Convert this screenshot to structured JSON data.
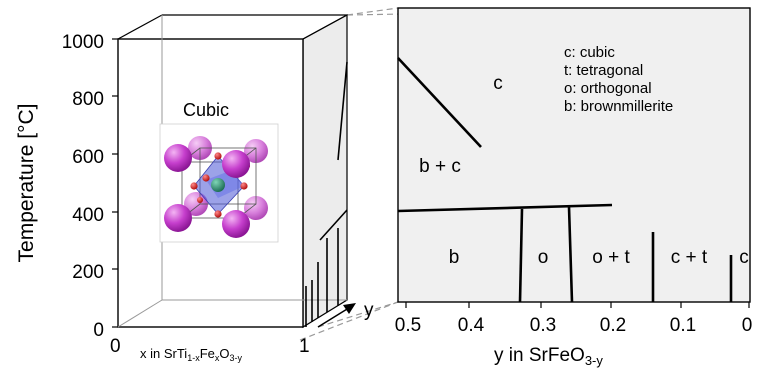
{
  "left_panel": {
    "y_axis_label": "Temperature [°C]",
    "y_ticks": [
      "0",
      "200",
      "400",
      "600",
      "800",
      "1000"
    ],
    "x_tick_start": "0",
    "x_tick_end": "1",
    "x_label_parts": [
      "x in SrTi",
      "1-x",
      "Fe",
      "x",
      "O",
      "3-y"
    ],
    "depth_label": "y",
    "structure_label": "Cubic",
    "structure_colors": {
      "sr": "#c23bc8",
      "fe": "#2a7f6a",
      "o": "#d81b1b",
      "octahedron": "#4a55d6"
    }
  },
  "right_panel": {
    "x_axis_label_parts": [
      "y in SrFeO",
      "3-y"
    ],
    "x_ticks": [
      "0.5",
      "0.4",
      "0.3",
      "0.2",
      "0.1",
      "0"
    ],
    "legend": [
      "c: cubic",
      "t: tetragonal",
      "o: orthogonal",
      "b: brownmillerite"
    ],
    "regions": [
      "c",
      "b + c",
      "b",
      "o",
      "o + t",
      "c + t",
      "c"
    ],
    "panel_color": "#f0f0f0"
  }
}
